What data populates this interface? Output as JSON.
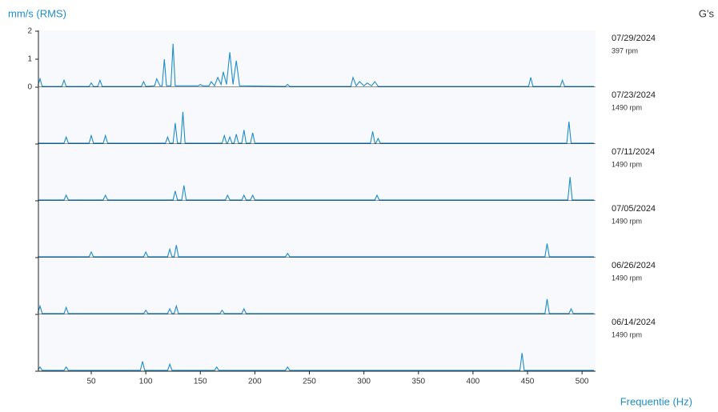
{
  "chart_data": {
    "type": "waterfall",
    "y_label": "mm/s (RMS)",
    "y2_label": "G's",
    "x_label": "Frequentie (Hz)",
    "xlim": [
      0,
      512
    ],
    "xticks": [
      50,
      100,
      150,
      200,
      250,
      300,
      350,
      400,
      450,
      500
    ],
    "ylim": [
      0,
      2
    ],
    "yticks": [
      0,
      1,
      2
    ],
    "color": "#1f8dc8",
    "series": [
      {
        "name": "07/29/2024",
        "rpm": "397 rpm",
        "x": [
          1,
          3,
          5,
          23,
          25,
          27,
          48,
          50,
          52,
          56,
          58,
          60,
          96,
          98,
          100,
          108,
          110,
          113,
          115,
          117,
          119,
          123,
          125,
          127,
          148,
          150,
          152,
          158,
          160,
          163,
          166,
          169,
          171,
          174,
          177,
          180,
          183,
          186,
          228,
          230,
          232,
          288,
          290,
          293,
          296,
          300,
          303,
          307,
          310,
          313,
          451,
          453,
          455,
          480,
          482,
          484,
          511
        ],
        "values": [
          0.05,
          0.3,
          0.03,
          0.03,
          0.25,
          0.03,
          0.03,
          0.15,
          0.03,
          0.03,
          0.25,
          0.03,
          0.03,
          0.2,
          0.03,
          0.05,
          0.3,
          0.05,
          0.05,
          1.0,
          0.05,
          0.05,
          1.55,
          0.05,
          0.05,
          0.1,
          0.05,
          0.05,
          0.2,
          0.05,
          0.35,
          0.1,
          0.55,
          0.1,
          1.25,
          0.1,
          0.95,
          0.05,
          0.03,
          0.1,
          0.03,
          0.03,
          0.35,
          0.05,
          0.2,
          0.05,
          0.15,
          0.05,
          0.2,
          0.03,
          0.03,
          0.35,
          0.03,
          0.03,
          0.25,
          0.03,
          0.03
        ]
      },
      {
        "name": "07/23/2024",
        "rpm": "1490 rpm",
        "x": [
          1,
          25,
          27,
          29,
          48,
          50,
          52,
          61,
          63,
          65,
          118,
          120,
          122,
          125,
          127,
          129,
          132,
          134,
          136,
          170,
          172,
          174,
          175,
          177,
          179,
          181,
          183,
          185,
          188,
          190,
          192,
          196,
          198,
          200,
          306,
          308,
          310,
          311,
          313,
          315,
          486,
          488,
          490,
          511
        ],
        "values": [
          0.03,
          0.03,
          0.25,
          0.03,
          0.03,
          0.3,
          0.03,
          0.03,
          0.3,
          0.03,
          0.03,
          0.25,
          0.03,
          0.03,
          0.75,
          0.03,
          0.03,
          1.15,
          0.03,
          0.03,
          0.3,
          0.03,
          0.03,
          0.25,
          0.03,
          0.03,
          0.35,
          0.03,
          0.03,
          0.5,
          0.03,
          0.03,
          0.4,
          0.03,
          0.03,
          0.45,
          0.03,
          0.03,
          0.2,
          0.03,
          0.03,
          0.8,
          0.03,
          0.03
        ]
      },
      {
        "name": "07/11/2024",
        "rpm": "1490 rpm",
        "x": [
          1,
          25,
          27,
          29,
          61,
          63,
          65,
          125,
          127,
          129,
          133,
          135,
          137,
          173,
          175,
          177,
          188,
          190,
          192,
          196,
          198,
          200,
          310,
          312,
          314,
          487,
          489,
          491,
          511
        ],
        "values": [
          0.03,
          0.03,
          0.2,
          0.03,
          0.03,
          0.2,
          0.03,
          0.03,
          0.35,
          0.03,
          0.03,
          0.55,
          0.03,
          0.03,
          0.2,
          0.03,
          0.03,
          0.2,
          0.03,
          0.03,
          0.2,
          0.03,
          0.03,
          0.2,
          0.03,
          0.03,
          0.85,
          0.03,
          0.03
        ]
      },
      {
        "name": "07/05/2024",
        "rpm": "1490 rpm",
        "x": [
          1,
          48,
          50,
          52,
          98,
          100,
          102,
          120,
          122,
          124,
          126,
          128,
          130,
          228,
          230,
          232,
          466,
          468,
          470,
          511
        ],
        "values": [
          0.03,
          0.03,
          0.2,
          0.03,
          0.03,
          0.2,
          0.03,
          0.03,
          0.3,
          0.03,
          0.03,
          0.45,
          0.03,
          0.03,
          0.15,
          0.03,
          0.03,
          0.5,
          0.03,
          0.03
        ]
      },
      {
        "name": "06/26/2024",
        "rpm": "1490 rpm",
        "x": [
          1,
          3,
          5,
          25,
          27,
          29,
          98,
          100,
          102,
          120,
          122,
          124,
          126,
          128,
          130,
          168,
          170,
          172,
          188,
          190,
          192,
          466,
          468,
          470,
          488,
          490,
          492,
          511
        ],
        "values": [
          0.05,
          0.3,
          0.03,
          0.03,
          0.25,
          0.03,
          0.03,
          0.15,
          0.03,
          0.03,
          0.2,
          0.03,
          0.03,
          0.3,
          0.03,
          0.03,
          0.15,
          0.03,
          0.03,
          0.2,
          0.03,
          0.03,
          0.55,
          0.03,
          0.03,
          0.2,
          0.03,
          0.03
        ]
      },
      {
        "name": "06/14/2024",
        "rpm": "1490 rpm",
        "x": [
          1,
          3,
          5,
          25,
          27,
          29,
          95,
          97,
          99,
          120,
          122,
          124,
          163,
          165,
          167,
          228,
          230,
          232,
          443,
          445,
          447,
          511
        ],
        "values": [
          0.05,
          0.15,
          0.03,
          0.03,
          0.15,
          0.03,
          0.03,
          0.35,
          0.03,
          0.03,
          0.25,
          0.03,
          0.03,
          0.15,
          0.03,
          0.03,
          0.15,
          0.03,
          0.03,
          0.65,
          0.03,
          0.03
        ]
      }
    ]
  }
}
